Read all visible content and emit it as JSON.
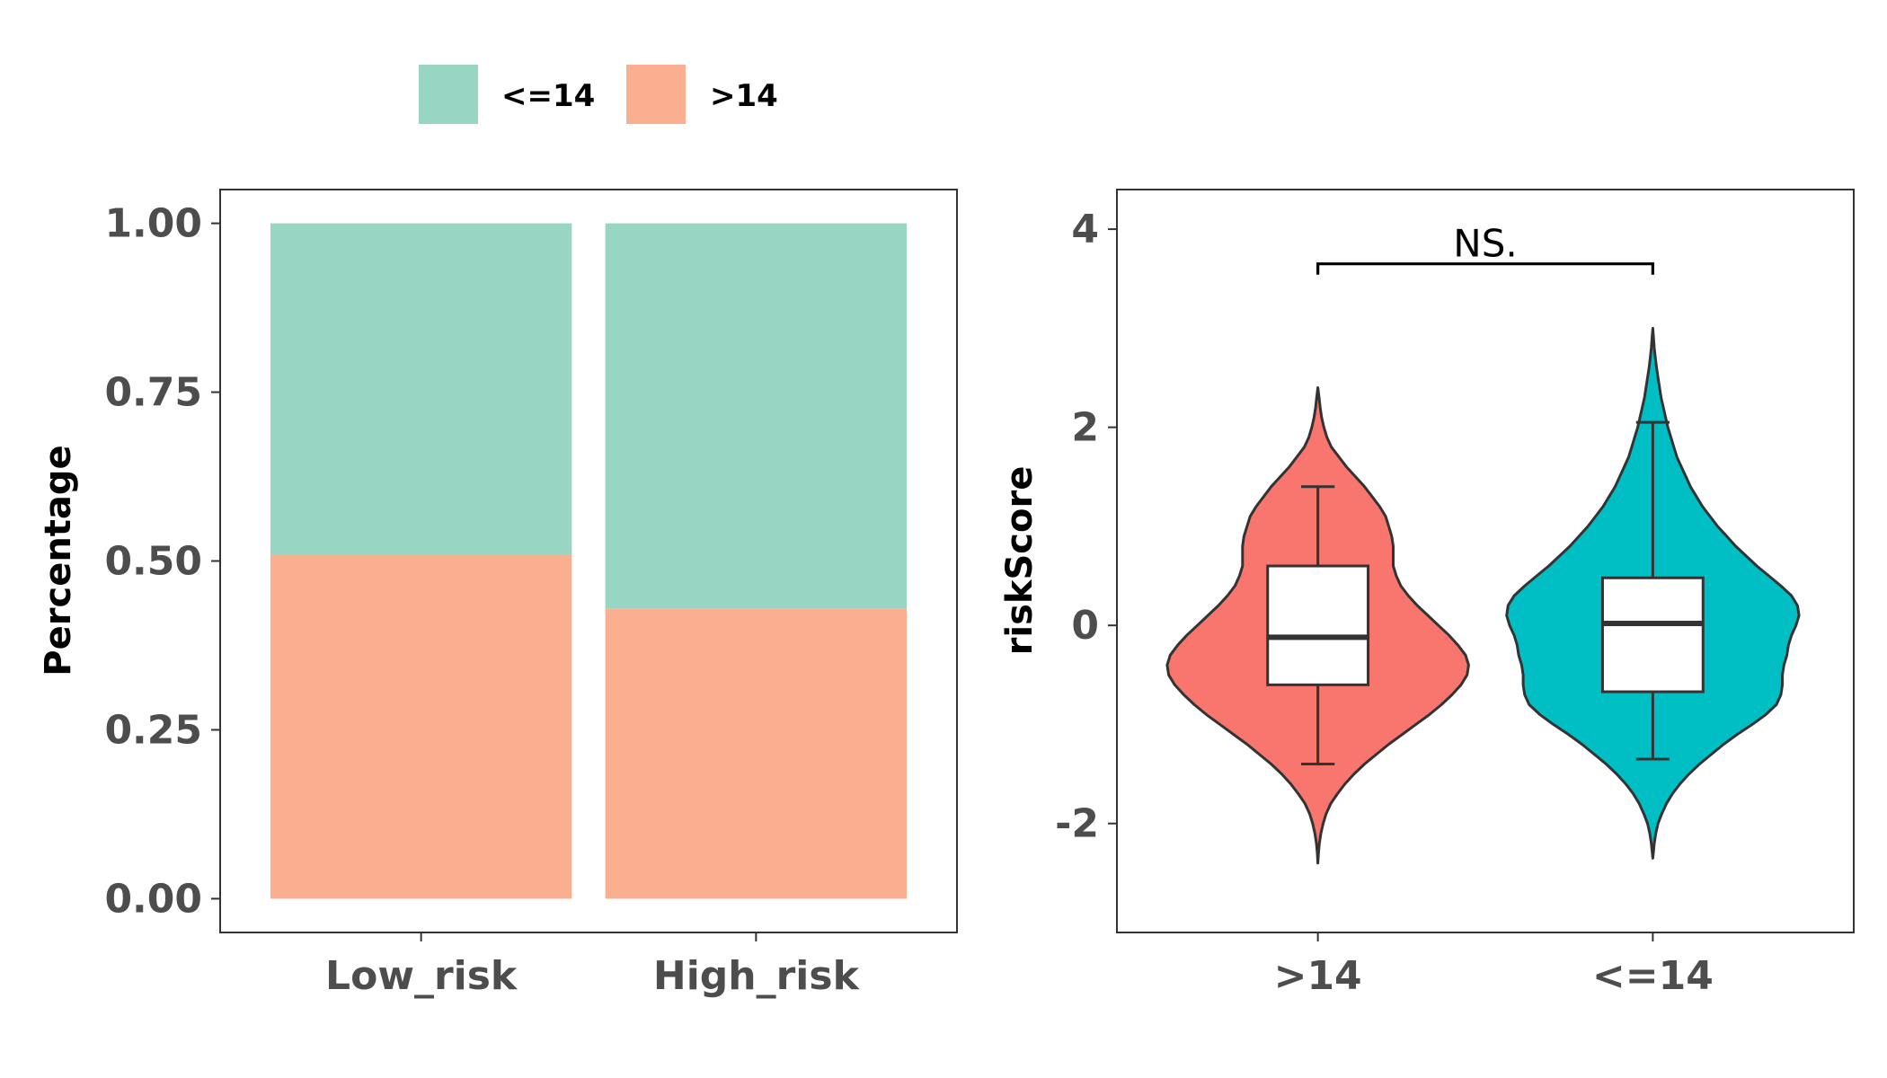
{
  "legend": {
    "items": [
      {
        "label": "<=14",
        "color": "#98D5C2"
      },
      {
        "label": ">14",
        "color": "#FBAF91"
      }
    ]
  },
  "chart_data": [
    {
      "type": "bar",
      "stacked": true,
      "title": "",
      "xlabel": "",
      "ylabel": "Percentage",
      "categories": [
        "Low_risk",
        "High_risk"
      ],
      "series": [
        {
          "name": ">14",
          "color": "#FBAF91",
          "values": [
            0.51,
            0.43
          ]
        },
        {
          "name": "<=14",
          "color": "#98D5C2",
          "values": [
            0.49,
            0.57
          ]
        }
      ],
      "ylim": [
        -0.05,
        1.05
      ],
      "yticks": [
        0,
        0.25,
        0.5,
        0.75,
        1
      ],
      "ytick_labels": [
        "0.00",
        "0.25",
        "0.50",
        "0.75",
        "1.00"
      ],
      "grid": false,
      "legend_position": "top"
    },
    {
      "type": "violin",
      "title": "",
      "xlabel": "",
      "ylabel": "riskScore",
      "categories": [
        ">14",
        "<=14"
      ],
      "ylim": [
        -3.1,
        4.4
      ],
      "yticks": [
        -2,
        0,
        2,
        4
      ],
      "ytick_labels": [
        "-2",
        "0",
        "2",
        "4"
      ],
      "grid": false,
      "groups": [
        {
          "name": ">14",
          "color": "#F8766D",
          "box": {
            "whisker_low": -1.4,
            "q1": -0.6,
            "median": -0.12,
            "q3": 0.6,
            "whisker_high": 1.4
          },
          "range": [
            -2.4,
            2.4
          ],
          "density": [
            [
              -2.4,
              0.0
            ],
            [
              -2.3,
              0.004
            ],
            [
              -2.2,
              0.01
            ],
            [
              -2.1,
              0.02
            ],
            [
              -2.0,
              0.035
            ],
            [
              -1.9,
              0.055
            ],
            [
              -1.8,
              0.085
            ],
            [
              -1.7,
              0.13
            ],
            [
              -1.6,
              0.18
            ],
            [
              -1.5,
              0.24
            ],
            [
              -1.4,
              0.31
            ],
            [
              -1.3,
              0.39
            ],
            [
              -1.2,
              0.47
            ],
            [
              -1.1,
              0.56
            ],
            [
              -1.0,
              0.65
            ],
            [
              -0.9,
              0.74
            ],
            [
              -0.8,
              0.82
            ],
            [
              -0.7,
              0.89
            ],
            [
              -0.6,
              0.95
            ],
            [
              -0.5,
              0.99
            ],
            [
              -0.4,
              1.0
            ],
            [
              -0.3,
              0.98
            ],
            [
              -0.2,
              0.93
            ],
            [
              -0.1,
              0.87
            ],
            [
              0.0,
              0.8
            ],
            [
              0.1,
              0.73
            ],
            [
              0.2,
              0.66
            ],
            [
              0.3,
              0.6
            ],
            [
              0.4,
              0.55
            ],
            [
              0.5,
              0.52
            ],
            [
              0.6,
              0.5
            ],
            [
              0.7,
              0.5
            ],
            [
              0.8,
              0.5
            ],
            [
              0.9,
              0.49
            ],
            [
              1.0,
              0.47
            ],
            [
              1.1,
              0.45
            ],
            [
              1.2,
              0.41
            ],
            [
              1.3,
              0.36
            ],
            [
              1.4,
              0.31
            ],
            [
              1.5,
              0.25
            ],
            [
              1.6,
              0.19
            ],
            [
              1.7,
              0.14
            ],
            [
              1.8,
              0.09
            ],
            [
              1.9,
              0.06
            ],
            [
              2.0,
              0.04
            ],
            [
              2.1,
              0.025
            ],
            [
              2.2,
              0.015
            ],
            [
              2.3,
              0.008
            ],
            [
              2.4,
              0.0
            ]
          ]
        },
        {
          "name": "<=14",
          "color": "#00BFC4",
          "box": {
            "whisker_low": -1.35,
            "q1": -0.67,
            "median": 0.02,
            "q3": 0.48,
            "whisker_high": 2.05
          },
          "range": [
            -2.35,
            3.0
          ],
          "density": [
            [
              -2.35,
              0.0
            ],
            [
              -2.2,
              0.01
            ],
            [
              -2.1,
              0.02
            ],
            [
              -2.0,
              0.035
            ],
            [
              -1.9,
              0.06
            ],
            [
              -1.8,
              0.09
            ],
            [
              -1.7,
              0.13
            ],
            [
              -1.6,
              0.18
            ],
            [
              -1.5,
              0.24
            ],
            [
              -1.4,
              0.31
            ],
            [
              -1.3,
              0.39
            ],
            [
              -1.2,
              0.47
            ],
            [
              -1.1,
              0.56
            ],
            [
              -1.0,
              0.66
            ],
            [
              -0.9,
              0.75
            ],
            [
              -0.8,
              0.82
            ],
            [
              -0.7,
              0.85
            ],
            [
              -0.6,
              0.86
            ],
            [
              -0.5,
              0.86
            ],
            [
              -0.4,
              0.87
            ],
            [
              -0.3,
              0.89
            ],
            [
              -0.2,
              0.9
            ],
            [
              -0.1,
              0.92
            ],
            [
              0.0,
              0.95
            ],
            [
              0.1,
              0.97
            ],
            [
              0.2,
              0.96
            ],
            [
              0.3,
              0.92
            ],
            [
              0.4,
              0.85
            ],
            [
              0.5,
              0.77
            ],
            [
              0.6,
              0.69
            ],
            [
              0.7,
              0.62
            ],
            [
              0.8,
              0.55
            ],
            [
              0.9,
              0.49
            ],
            [
              1.0,
              0.43
            ],
            [
              1.1,
              0.38
            ],
            [
              1.2,
              0.33
            ],
            [
              1.3,
              0.29
            ],
            [
              1.4,
              0.25
            ],
            [
              1.5,
              0.22
            ],
            [
              1.6,
              0.19
            ],
            [
              1.7,
              0.16
            ],
            [
              1.8,
              0.14
            ],
            [
              1.9,
              0.12
            ],
            [
              2.0,
              0.1
            ],
            [
              2.1,
              0.085
            ],
            [
              2.2,
              0.07
            ],
            [
              2.3,
              0.055
            ],
            [
              2.4,
              0.045
            ],
            [
              2.5,
              0.035
            ],
            [
              2.6,
              0.025
            ],
            [
              2.7,
              0.017
            ],
            [
              2.8,
              0.01
            ],
            [
              2.9,
              0.005
            ],
            [
              3.0,
              0.0
            ]
          ]
        }
      ],
      "comparison": {
        "from": ">14",
        "to": "<=14",
        "y": 3.65,
        "label": "NS."
      }
    }
  ]
}
